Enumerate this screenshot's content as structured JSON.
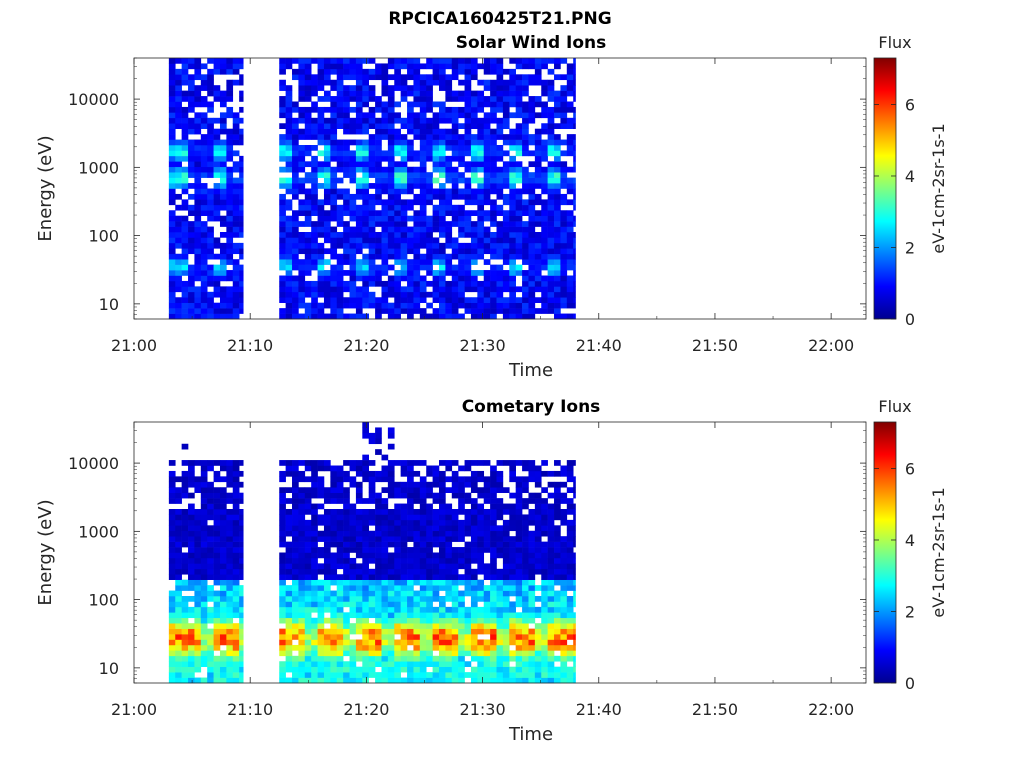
{
  "figure_title": "RPCICA160425T21.PNG",
  "colormap": [
    "#00008f",
    "#0000ff",
    "#0080ff",
    "#00ffff",
    "#80ff80",
    "#ffff00",
    "#ff8000",
    "#ff0000",
    "#800000"
  ],
  "chart_data": [
    {
      "type": "heatmap",
      "title": "Solar Wind Ions",
      "xlabel": "Time",
      "ylabel": "Energy (eV)",
      "x_ticks": [
        "21:00",
        "21:10",
        "21:20",
        "21:30",
        "21:40",
        "21:50",
        "22:00"
      ],
      "x_range_minutes": [
        0,
        63
      ],
      "y_scale": "log",
      "y_ticks": [
        "10",
        "100",
        "1000",
        "10000"
      ],
      "y_tick_values": [
        10,
        100,
        1000,
        10000
      ],
      "y_range": [
        6,
        40000
      ],
      "colorbar": {
        "title": "Flux",
        "label": "eV-1cm-2sr-1s-1",
        "ticks": [
          "0",
          "2",
          "4",
          "6"
        ],
        "range": [
          0,
          7.3
        ]
      },
      "data_blocks_minutes": [
        [
          3,
          9.4
        ],
        [
          12.5,
          38
        ]
      ],
      "features": [
        {
          "energy_eV": 700,
          "flux": 3.2
        },
        {
          "energy_eV": 1700,
          "flux": 2.8
        },
        {
          "energy_eV": 35,
          "flux": 2.6
        }
      ],
      "background_flux": 1.0
    },
    {
      "type": "heatmap",
      "title": "Cometary Ions",
      "xlabel": "Time",
      "ylabel": "Energy (eV)",
      "x_ticks": [
        "21:00",
        "21:10",
        "21:20",
        "21:30",
        "21:40",
        "21:50",
        "22:00"
      ],
      "x_range_minutes": [
        0,
        63
      ],
      "y_scale": "log",
      "y_ticks": [
        "10",
        "100",
        "1000",
        "10000"
      ],
      "y_tick_values": [
        10,
        100,
        1000,
        10000
      ],
      "y_range": [
        6,
        40000
      ],
      "colorbar": {
        "title": "Flux",
        "label": "eV-1cm-2sr-1s-1",
        "ticks": [
          "0",
          "2",
          "4",
          "6"
        ],
        "range": [
          0,
          7.3
        ]
      },
      "data_blocks_minutes": [
        [
          3,
          9.4
        ],
        [
          12.5,
          38
        ]
      ],
      "features": [
        {
          "energy_eV": 27,
          "flux": 5.8
        },
        {
          "energy_eV": 10,
          "flux": 3.0
        }
      ],
      "background_flux": 0.6
    }
  ]
}
